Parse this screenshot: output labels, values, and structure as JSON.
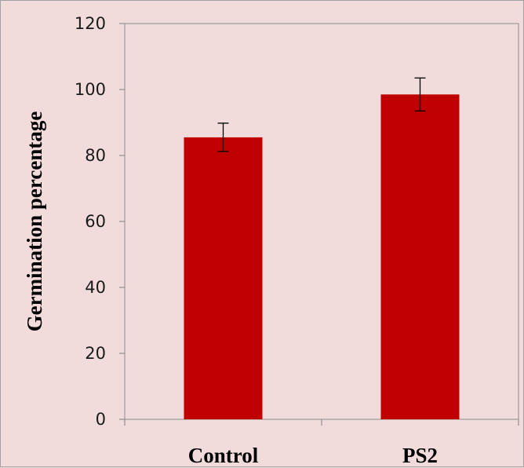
{
  "chart_data": {
    "type": "bar",
    "categories": [
      "Control",
      "PS2"
    ],
    "values": [
      85.5,
      98.5
    ],
    "error": [
      4.3,
      5.0
    ],
    "ylabel": "Germination percentage",
    "xlabel": "",
    "ylim": [
      0,
      120
    ],
    "yticks": [
      0,
      20,
      40,
      60,
      80,
      100,
      120
    ],
    "ytick_labels": [
      "0",
      "20",
      "40",
      "60",
      "80",
      "100",
      "120"
    ],
    "grid": false,
    "legend": "none",
    "colors": {
      "bar": "#c00000",
      "plot_background": "#f2dcdb",
      "axis": "#808080",
      "error_bar": "#000000"
    }
  }
}
